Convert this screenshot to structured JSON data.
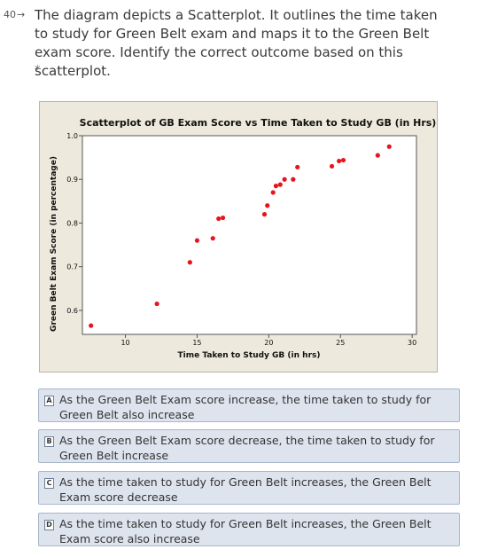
{
  "question": {
    "number": "40",
    "arrow": "→",
    "text": "The diagram depicts a Scatterplot. It outlines the time taken to study for Green Belt exam and maps it to the Green Belt exam score. Identify the correct outcome based on this scatterplot.",
    "required_mark": "*"
  },
  "chart_data": {
    "type": "scatter",
    "title": "Scatterplot of GB Exam Score vs Time Taken to Study GB (in Hrs)",
    "xlabel": "Time Taken to Study GB (in hrs)",
    "ylabel": "Green Belt Exam Score (in percentage)",
    "xlim": [
      7,
      30.3
    ],
    "ylim": [
      0.545,
      1.0
    ],
    "xticks": [
      10,
      15,
      20,
      25,
      30
    ],
    "yticks": [
      0.6,
      0.7,
      0.8,
      0.9,
      1.0
    ],
    "xtick_labels": [
      "10",
      "15",
      "20",
      "25",
      "30"
    ],
    "ytick_labels": [
      "0.6",
      "0.7",
      "0.8",
      "0.9",
      "1.0"
    ],
    "grid": false,
    "point_color": "#e8141c",
    "x": [
      7.6,
      12.2,
      14.5,
      15.0,
      16.1,
      16.5,
      16.8,
      19.7,
      19.9,
      20.3,
      20.5,
      20.8,
      21.1,
      21.7,
      22.0,
      24.4,
      24.9,
      25.2,
      27.6,
      28.4
    ],
    "y": [
      0.565,
      0.615,
      0.71,
      0.76,
      0.765,
      0.81,
      0.812,
      0.82,
      0.84,
      0.87,
      0.885,
      0.888,
      0.9,
      0.9,
      0.928,
      0.93,
      0.942,
      0.944,
      0.955,
      0.975
    ]
  },
  "options": [
    {
      "letter": "A",
      "text": "As the Green Belt Exam score increase, the time taken to study for Green Belt also increase"
    },
    {
      "letter": "B",
      "text": "As the Green Belt Exam score decrease, the time taken to study for Green Belt increase"
    },
    {
      "letter": "C",
      "text": "As the time taken to study for Green Belt increases, the Green Belt Exam score decrease"
    },
    {
      "letter": "D",
      "text": "As the time taken to study for Green Belt increases, the Green Belt Exam score also increase"
    }
  ]
}
